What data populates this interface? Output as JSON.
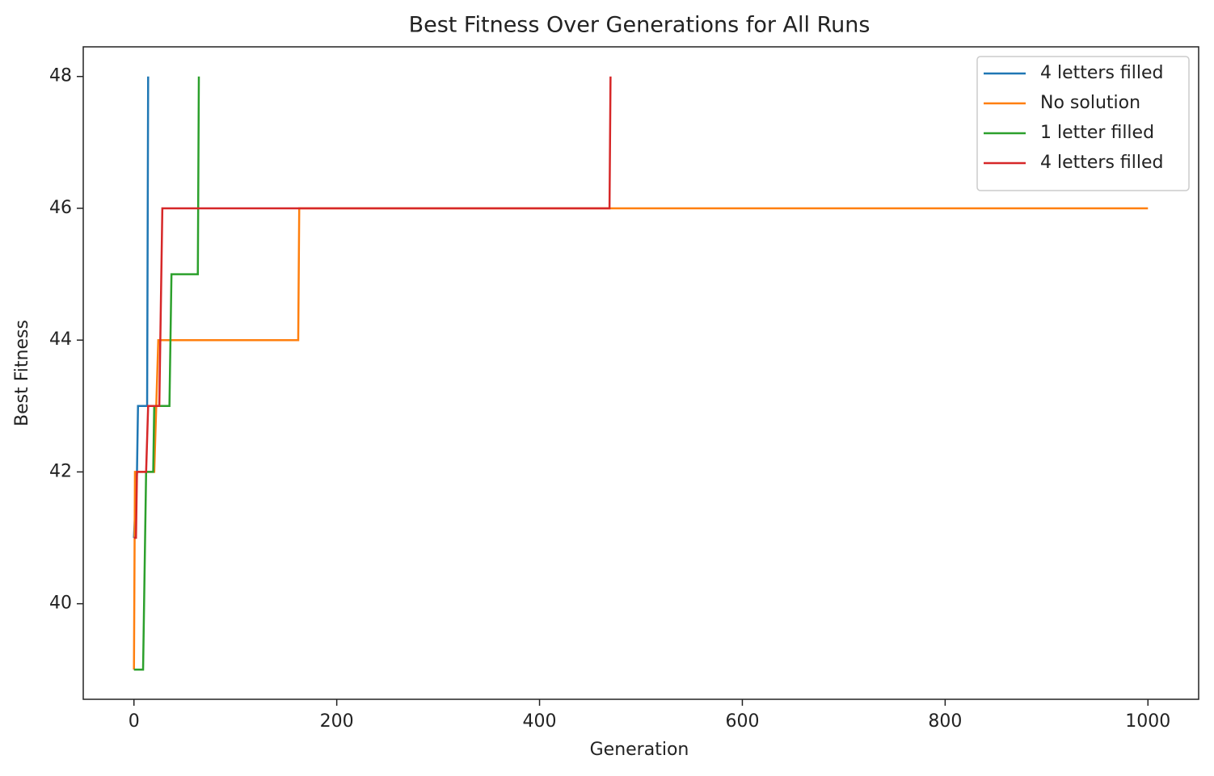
{
  "chart_data": {
    "type": "line",
    "title": "Best Fitness Over Generations for All Runs",
    "x_label": "Generation",
    "y_label": "Best Fitness",
    "series": [
      {
        "name": "4 letters filled",
        "color": "#1f77b4",
        "x": [
          0,
          3,
          4,
          13,
          14
        ],
        "values": [
          41,
          42,
          43,
          43,
          48
        ]
      },
      {
        "name": "No solution",
        "color": "#ff7f0e",
        "x": [
          0,
          1,
          20,
          24,
          162,
          163,
          1000
        ],
        "values": [
          39,
          42,
          42,
          44,
          44,
          46,
          46
        ]
      },
      {
        "name": "1 letter filled",
        "color": "#2ca02c",
        "x": [
          0,
          9,
          10,
          12,
          19,
          20,
          35,
          37,
          63,
          64
        ],
        "values": [
          39,
          39,
          40,
          42,
          42,
          43,
          43,
          45,
          45,
          48
        ]
      },
      {
        "name": "4 letters filled",
        "color": "#d62728",
        "x": [
          0,
          2,
          3,
          12,
          14,
          25,
          28,
          469,
          470
        ],
        "values": [
          41,
          41,
          42,
          42,
          43,
          43,
          46,
          46,
          48
        ]
      }
    ],
    "xlim": [
      -50,
      1050
    ],
    "xticks": [
      0,
      200,
      400,
      600,
      800,
      1000
    ],
    "ylim": [
      38.55,
      48.45
    ],
    "yticks": [
      40,
      42,
      44,
      46,
      48
    ],
    "legend": "upper right"
  }
}
